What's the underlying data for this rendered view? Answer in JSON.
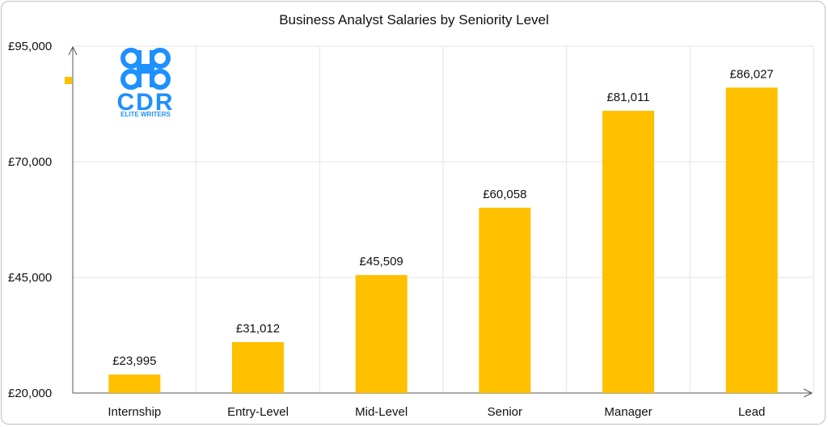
{
  "chart_data": {
    "type": "bar",
    "title": "Business Analyst Salaries by Seniority Level",
    "xlabel": "",
    "ylabel": "",
    "categories": [
      "Internship",
      "Entry-Level",
      "Mid-Level",
      "Senior",
      "Manager",
      "Lead"
    ],
    "values": [
      23995,
      31012,
      45509,
      60058,
      81011,
      86027
    ],
    "data_labels": [
      "£23,995",
      "£31,012",
      "£45,509",
      "£60,058",
      "£81,011",
      "£86,027"
    ],
    "ylim": [
      20000,
      95000
    ],
    "yticks": [
      20000,
      45000,
      70000,
      95000
    ],
    "ytick_labels": [
      "£20,000",
      "£45,000",
      "£70,000",
      "£95,000"
    ],
    "grid": true,
    "legend": "none",
    "bar_color": "#FFC000"
  },
  "logo": {
    "text": "CDR",
    "subtext": "ELITE WRITERS",
    "color": "#1E90FF"
  }
}
